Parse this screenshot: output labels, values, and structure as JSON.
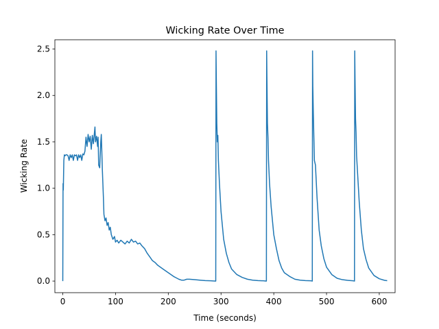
{
  "chart_data": {
    "type": "line",
    "title": "Wicking Rate Over Time",
    "xlabel": "Time (seconds)",
    "ylabel": "Wicking Rate",
    "xlim": [
      -15,
      630
    ],
    "ylim": [
      -0.125,
      2.6
    ],
    "x_ticks": [
      0,
      100,
      200,
      300,
      400,
      500,
      600
    ],
    "y_ticks": [
      0.0,
      0.5,
      1.0,
      1.5,
      2.0,
      2.5
    ],
    "x_tick_labels": [
      "0",
      "100",
      "200",
      "300",
      "400",
      "500",
      "600"
    ],
    "y_tick_labels": [
      "0.0",
      "0.5",
      "1.0",
      "1.5",
      "2.0",
      "2.5"
    ],
    "grid": false,
    "legend": "none",
    "series": [
      {
        "color": "#1f77b4",
        "x": [
          0,
          0.5,
          1,
          2,
          3,
          4,
          6,
          8,
          10,
          12,
          14,
          16,
          18,
          20,
          22,
          24,
          26,
          28,
          30,
          32,
          34,
          36,
          38,
          40,
          42,
          44,
          46,
          48,
          50,
          52,
          54,
          56,
          58,
          60,
          61,
          62,
          64,
          66,
          67,
          68,
          70,
          72,
          73,
          74,
          75,
          76,
          77,
          78,
          80,
          82,
          84,
          86,
          88,
          90,
          92,
          95,
          98,
          100,
          103,
          106,
          110,
          114,
          118,
          122,
          126,
          130,
          134,
          138,
          142,
          146,
          150,
          155,
          160,
          165,
          170,
          175,
          180,
          190,
          200,
          210,
          220,
          225,
          230,
          235,
          240,
          250,
          260,
          270,
          280,
          290,
          290.5,
          291,
          292,
          293,
          294,
          295,
          297,
          300,
          305,
          310,
          315,
          320,
          330,
          340,
          350,
          360,
          370,
          380,
          386,
          386.5,
          387,
          388,
          389,
          390,
          392,
          395,
          400,
          405,
          410,
          415,
          420,
          430,
          440,
          450,
          460,
          470,
          473,
          473.5,
          474,
          475,
          476,
          477,
          479,
          482,
          486,
          490,
          495,
          500,
          510,
          520,
          530,
          540,
          550,
          553,
          553.5,
          554,
          555,
          556,
          557,
          559,
          562,
          566,
          570,
          575,
          580,
          590,
          600,
          610,
          615
        ],
        "y": [
          0.0,
          1.05,
          0.98,
          1.3,
          1.36,
          1.35,
          1.36,
          1.36,
          1.35,
          1.3,
          1.36,
          1.33,
          1.36,
          1.3,
          1.36,
          1.35,
          1.36,
          1.3,
          1.36,
          1.33,
          1.36,
          1.3,
          1.37,
          1.36,
          1.4,
          1.55,
          1.45,
          1.58,
          1.5,
          1.56,
          1.42,
          1.57,
          1.48,
          1.6,
          1.66,
          1.5,
          1.56,
          1.45,
          1.55,
          1.25,
          1.22,
          1.5,
          1.58,
          1.4,
          1.2,
          1.05,
          0.9,
          0.72,
          0.65,
          0.68,
          0.6,
          0.63,
          0.55,
          0.58,
          0.5,
          0.45,
          0.48,
          0.42,
          0.44,
          0.41,
          0.44,
          0.42,
          0.4,
          0.43,
          0.41,
          0.45,
          0.42,
          0.43,
          0.4,
          0.41,
          0.38,
          0.35,
          0.3,
          0.26,
          0.22,
          0.2,
          0.17,
          0.13,
          0.09,
          0.05,
          0.02,
          0.01,
          0.01,
          0.02,
          0.02,
          0.015,
          0.01,
          0.005,
          0.003,
          0.0,
          2.48,
          2.2,
          1.7,
          1.5,
          1.57,
          1.3,
          1.05,
          0.75,
          0.45,
          0.3,
          0.2,
          0.13,
          0.07,
          0.04,
          0.02,
          0.01,
          0.005,
          0.003,
          0.0,
          2.48,
          2.2,
          1.7,
          1.55,
          1.3,
          1.05,
          0.8,
          0.5,
          0.35,
          0.22,
          0.14,
          0.09,
          0.05,
          0.02,
          0.01,
          0.005,
          0.003,
          0.0,
          2.48,
          2.1,
          1.8,
          1.55,
          1.3,
          1.25,
          0.9,
          0.55,
          0.38,
          0.24,
          0.15,
          0.07,
          0.03,
          0.015,
          0.008,
          0.003,
          0.0,
          2.48,
          2.2,
          1.75,
          1.6,
          1.35,
          1.15,
          0.85,
          0.55,
          0.35,
          0.23,
          0.14,
          0.06,
          0.025,
          0.008,
          0.004
        ]
      }
    ]
  }
}
